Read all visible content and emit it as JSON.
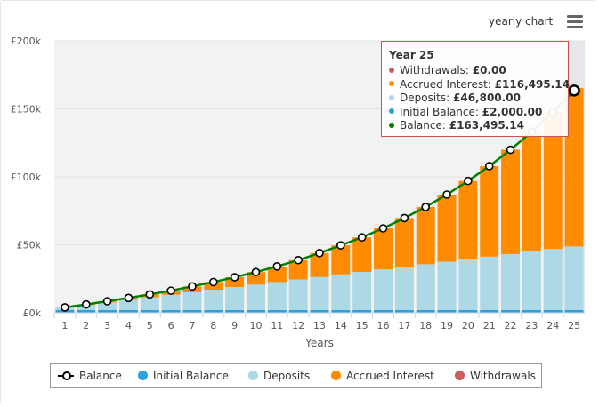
{
  "menu": {
    "label": "yearly chart"
  },
  "chart_data": {
    "type": "bar",
    "xlabel": "Years",
    "ylabel": "",
    "ylim": [
      0,
      200000
    ],
    "y_ticks": [
      0,
      50000,
      100000,
      150000,
      200000
    ],
    "y_tick_labels": [
      "£0k",
      "£50k",
      "£100k",
      "£150k",
      "£200k"
    ],
    "categories": [
      "1",
      "2",
      "3",
      "4",
      "5",
      "6",
      "7",
      "8",
      "9",
      "10",
      "11",
      "12",
      "13",
      "14",
      "15",
      "16",
      "17",
      "18",
      "19",
      "20",
      "21",
      "22",
      "23",
      "24",
      "25"
    ],
    "stacked": true,
    "series": [
      {
        "name": "Initial Balance",
        "color": "#2aa0de",
        "type": "bar",
        "values": [
          2000,
          2000,
          2000,
          2000,
          2000,
          2000,
          2000,
          2000,
          2000,
          2000,
          2000,
          2000,
          2000,
          2000,
          2000,
          2000,
          2000,
          2000,
          2000,
          2000,
          2000,
          2000,
          2000,
          2000,
          2000
        ]
      },
      {
        "name": "Deposits",
        "color": "#add8e6",
        "type": "bar",
        "values": [
          1872,
          3744,
          5616,
          7488,
          9360,
          11232,
          13104,
          14976,
          16848,
          18720,
          20592,
          22464,
          24336,
          26208,
          28080,
          29952,
          31824,
          33696,
          35568,
          37440,
          39312,
          41184,
          43056,
          44928,
          46800
        ]
      },
      {
        "name": "Accrued Interest",
        "color": "#ff8c00",
        "type": "bar",
        "values": [
          87,
          413,
          873,
          1420,
          2160,
          3020,
          4300,
          5620,
          7280,
          9200,
          11510,
          14240,
          17580,
          21380,
          25350,
          30140,
          35850,
          42120,
          49360,
          57530,
          66560,
          76740,
          88090,
          100830,
          116495.14
        ]
      },
      {
        "name": "Withdrawals",
        "color": "#cd5c5c",
        "type": "bar",
        "values": [
          0,
          0,
          0,
          0,
          0,
          0,
          0,
          0,
          0,
          0,
          0,
          0,
          0,
          0,
          0,
          0,
          0,
          0,
          0,
          0,
          0,
          0,
          0,
          0,
          0
        ]
      },
      {
        "name": "Balance",
        "color": "#008000",
        "type": "line",
        "values": [
          3959,
          6157,
          8489,
          10908,
          13520,
          16252,
          19404,
          22596,
          26128,
          29920,
          34102,
          38704,
          43916,
          49588,
          55430,
          62092,
          69674,
          77816,
          86928,
          96970,
          107872,
          119924,
          133146,
          147758,
          163495.14
        ]
      }
    ],
    "legend": [
      "Balance",
      "Initial Balance",
      "Deposits",
      "Accrued Interest",
      "Withdrawals"
    ],
    "legend_placement": "bottom",
    "grid": true
  },
  "tooltip": {
    "title": "Year 25",
    "rows": [
      {
        "label": "Withdrawals:",
        "value": "£0.00",
        "color": "#cd5c5c"
      },
      {
        "label": "Accrued Interest:",
        "value": "£116,495.14",
        "color": "#ff8c00"
      },
      {
        "label": "Deposits:",
        "value": "£46,800.00",
        "color": "#add8e6"
      },
      {
        "label": "Initial Balance:",
        "value": "£2,000.00",
        "color": "#2aa0de"
      },
      {
        "label": "Balance:",
        "value": "£163,495.14",
        "color": "#008000"
      }
    ]
  }
}
